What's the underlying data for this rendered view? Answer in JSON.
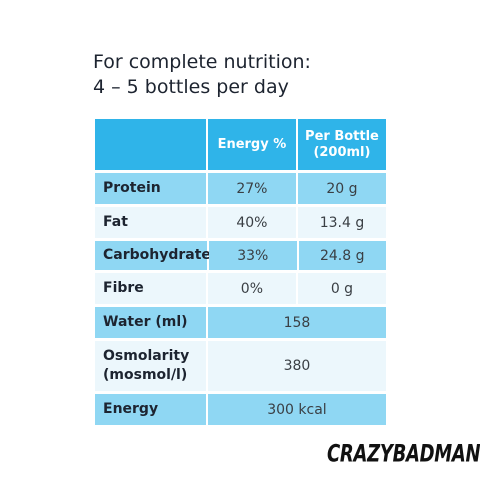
{
  "heading": {
    "line1": "For complete nutrition:",
    "line2": "4 – 5 bottles per day"
  },
  "table": {
    "headers": {
      "energy": "Energy %",
      "per_bottle_line1": "Per Bottle",
      "per_bottle_line2": "(200ml)"
    },
    "rows": [
      {
        "label": "Protein",
        "energy": "27%",
        "per_bottle": "20 g"
      },
      {
        "label": "Fat",
        "energy": "40%",
        "per_bottle": "13.4 g"
      },
      {
        "label": "Carbohydrate",
        "energy": "33%",
        "per_bottle": "24.8 g"
      },
      {
        "label": "Fibre",
        "energy": "0%",
        "per_bottle": "0 g"
      }
    ],
    "water": {
      "label": "Water (ml)",
      "value": "158"
    },
    "osmolarity": {
      "label_line1": "Osmolarity",
      "label_line2": "(mosmol/l)",
      "value": "380"
    },
    "energy": {
      "label": "Energy",
      "value": "300 kcal"
    }
  },
  "brand": {
    "text": "CRAZYBADMAN"
  },
  "colors": {
    "header": "#2fb4e9",
    "row_blue": "#8fd7f3",
    "row_light": "#ecf7fc"
  }
}
